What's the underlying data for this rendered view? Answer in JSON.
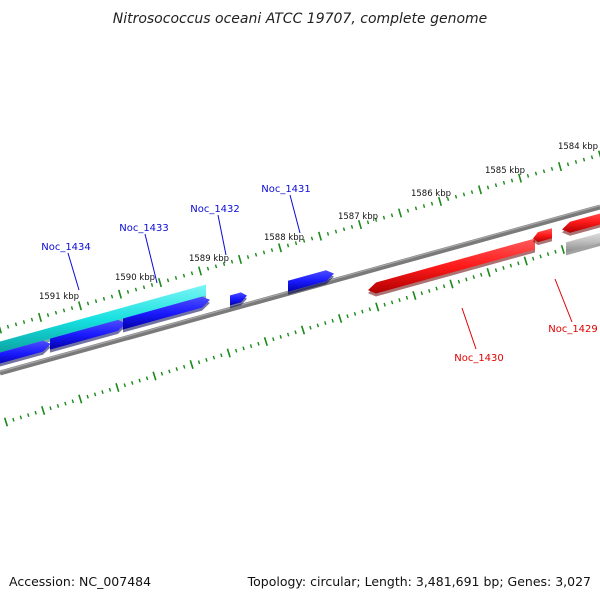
{
  "title": "Nitrosococcus oceani ATCC 19707, complete genome",
  "footer": {
    "accession": "Accession: NC_007484",
    "summary": "Topology: circular; Length: 3,481,691 bp; Genes: 3,027"
  },
  "colors": {
    "forward_strand": "#1a1aff",
    "reverse_strand": "#ff1a1a",
    "highlight": "#16e0e0",
    "other": "#bfbfbf",
    "backbone": "#808080",
    "ticks": "#1a8a1a"
  },
  "scale_labels": [
    "1584 kbp",
    "1585 kbp",
    "1586 kbp",
    "1587 kbp",
    "1588 kbp",
    "1589 kbp",
    "1590 kbp",
    "1591 kbp"
  ],
  "genes": [
    {
      "name": "Noc_1434",
      "strand": "forward",
      "color": "#1a1aff"
    },
    {
      "name": "Noc_1433",
      "strand": "forward",
      "color": "#1a1aff"
    },
    {
      "name": "Noc_1432",
      "strand": "forward",
      "color": "#1a1aff"
    },
    {
      "name": "Noc_1431",
      "strand": "forward",
      "color": "#1a1aff"
    },
    {
      "name": "Noc_1430",
      "strand": "reverse",
      "color": "#ff1a1a"
    },
    {
      "name": "Noc_1429",
      "strand": "reverse",
      "color": "#ff1a1a"
    }
  ]
}
